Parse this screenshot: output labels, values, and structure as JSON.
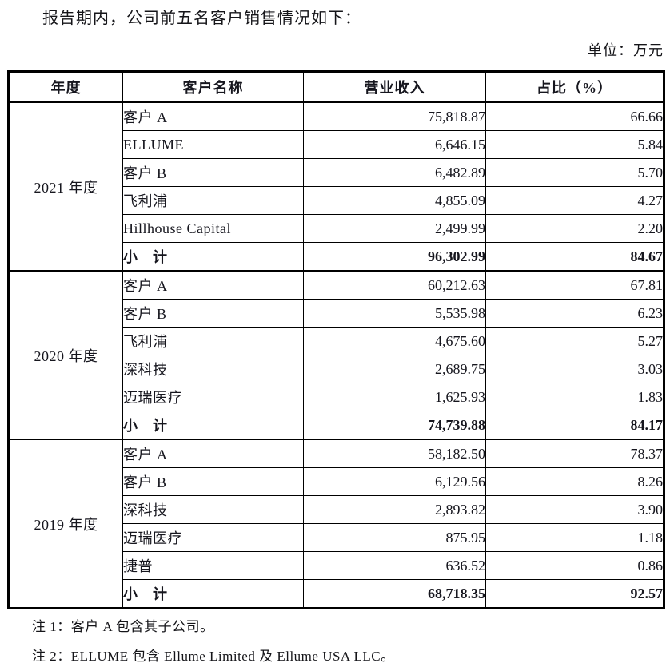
{
  "intro": "报告期内，公司前五名客户销售情况如下：",
  "unit_label": "单位：万元",
  "table": {
    "headers": [
      "年度",
      "客户名称",
      "营业收入",
      "占比（%）"
    ],
    "subtotal_label": "小　计",
    "groups": [
      {
        "year": "2021 年度",
        "rows": [
          {
            "customer": "客户 A",
            "revenue": "75,818.87",
            "share": "66.66"
          },
          {
            "customer": "ELLUME",
            "revenue": "6,646.15",
            "share": "5.84"
          },
          {
            "customer": "客户 B",
            "revenue": "6,482.89",
            "share": "5.70"
          },
          {
            "customer": "飞利浦",
            "revenue": "4,855.09",
            "share": "4.27"
          },
          {
            "customer": "Hillhouse Capital",
            "revenue": "2,499.99",
            "share": "2.20"
          }
        ],
        "subtotal": {
          "revenue": "96,302.99",
          "share": "84.67"
        }
      },
      {
        "year": "2020 年度",
        "rows": [
          {
            "customer": "客户 A",
            "revenue": "60,212.63",
            "share": "67.81"
          },
          {
            "customer": "客户 B",
            "revenue": "5,535.98",
            "share": "6.23"
          },
          {
            "customer": "飞利浦",
            "revenue": "4,675.60",
            "share": "5.27"
          },
          {
            "customer": "深科技",
            "revenue": "2,689.75",
            "share": "3.03"
          },
          {
            "customer": "迈瑞医疗",
            "revenue": "1,625.93",
            "share": "1.83"
          }
        ],
        "subtotal": {
          "revenue": "74,739.88",
          "share": "84.17"
        }
      },
      {
        "year": "2019 年度",
        "rows": [
          {
            "customer": "客户 A",
            "revenue": "58,182.50",
            "share": "78.37"
          },
          {
            "customer": "客户 B",
            "revenue": "6,129.56",
            "share": "8.26"
          },
          {
            "customer": "深科技",
            "revenue": "2,893.82",
            "share": "3.90"
          },
          {
            "customer": "迈瑞医疗",
            "revenue": "875.95",
            "share": "1.18"
          },
          {
            "customer": "捷普",
            "revenue": "636.52",
            "share": "0.86"
          }
        ],
        "subtotal": {
          "revenue": "68,718.35",
          "share": "92.57"
        }
      }
    ]
  },
  "notes": [
    "注 1：客户 A 包含其子公司。",
    "注 2：ELLUME 包含 Ellume Limited 及 Ellume USA LLC。"
  ]
}
